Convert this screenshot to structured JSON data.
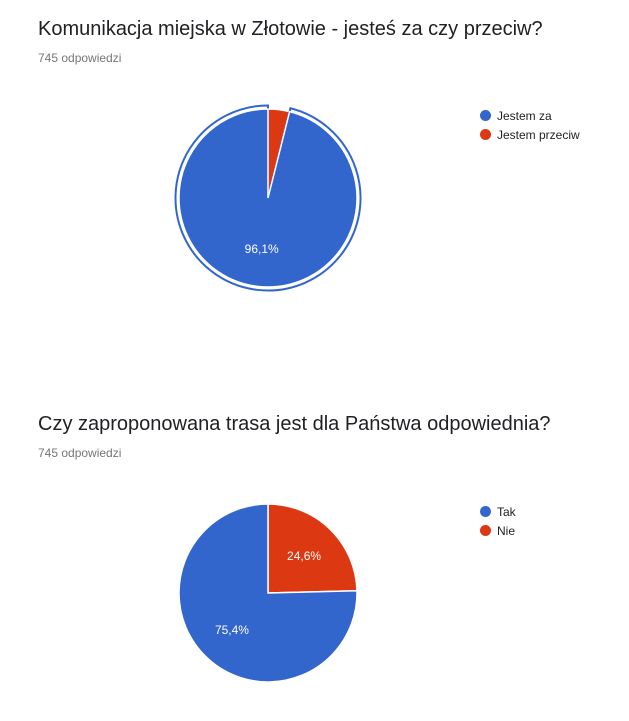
{
  "questions": [
    {
      "title": "Komunikacja miejska w Złotowie - jesteś za czy przeciw?",
      "responses": "745 odpowiedzi"
    },
    {
      "title": "Czy zaproponowana trasa jest dla Państwa odpowiednia?",
      "responses": "745 odpowiedzi"
    }
  ],
  "chart_data": [
    {
      "type": "pie",
      "title": "Komunikacja miejska w Złotowie - jesteś za czy przeciw?",
      "categories": [
        "Jestem za",
        "Jestem przeciw"
      ],
      "values": [
        96.1,
        3.9
      ],
      "data_labels": [
        "96,1%",
        ""
      ],
      "colors": [
        "#3366cc",
        "#dc3912"
      ],
      "legend_position": "right",
      "highlighted_slice": "Jestem za"
    },
    {
      "type": "pie",
      "title": "Czy zaproponowana trasa jest dla Państwa odpowiednia?",
      "categories": [
        "Tak",
        "Nie"
      ],
      "values": [
        75.4,
        24.6
      ],
      "data_labels": [
        "75,4%",
        "24,6%"
      ],
      "colors": [
        "#3366cc",
        "#dc3912"
      ],
      "legend_position": "right"
    }
  ]
}
